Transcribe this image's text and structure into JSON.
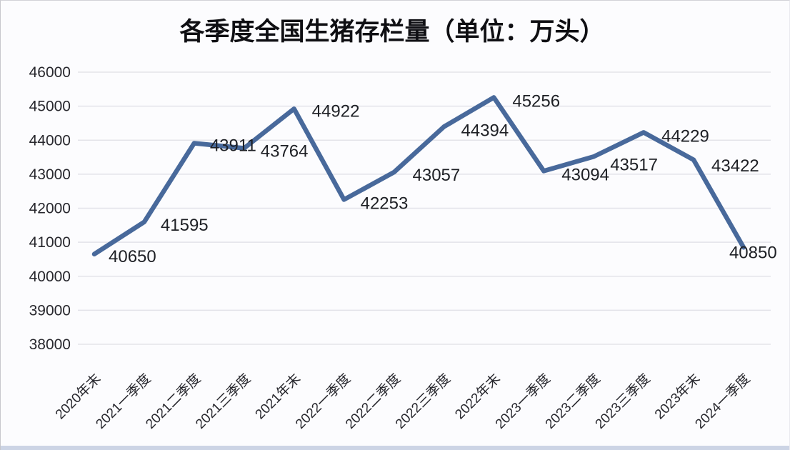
{
  "chart_data": {
    "type": "line",
    "title": "各季度全国生猪存栏量（单位：万头）",
    "categories": [
      "2020年末",
      "2021一季度",
      "2021二季度",
      "2021三季度",
      "2021年末",
      "2022一季度",
      "2022二季度",
      "2022三季度",
      "2022年末",
      "2023一季度",
      "2023二季度",
      "2023三季度",
      "2023年末",
      "2024一季度"
    ],
    "values": [
      40650,
      41595,
      43911,
      43764,
      44922,
      42253,
      43057,
      44394,
      45256,
      43094,
      43517,
      44229,
      43422,
      40850
    ],
    "yticks": [
      38000,
      39000,
      40000,
      41000,
      42000,
      43000,
      44000,
      45000,
      46000
    ],
    "ylim": [
      38000,
      46000
    ],
    "xlabel": "",
    "ylabel": "",
    "grid": "horizontal",
    "legend": "none",
    "x_tick_rotation_deg": 45,
    "data_labels_shown": true,
    "colors": {
      "line": "#48699b",
      "grid": "#e3e3e9",
      "axis_text": "#27272d",
      "data_label_text": "#1e2025",
      "title_text": "#0f0f13",
      "background": "#fcfcfe",
      "bottom_border": "#ccd4e5"
    }
  }
}
